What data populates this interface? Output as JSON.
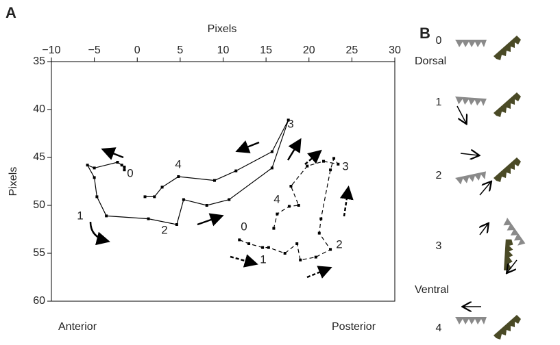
{
  "chart_data": {
    "type": "line",
    "panel_label": "A",
    "x_label": "Pixels",
    "y_label": "Pixels",
    "direction_labels": [
      "Dorsal",
      "Ventral",
      "Anterior",
      "Posterior"
    ],
    "xlim": [
      -10,
      30
    ],
    "ylim": [
      35,
      60
    ],
    "y_inverted": true,
    "xticks": [
      {
        "value": -10,
        "label": "−10"
      },
      {
        "value": -5,
        "label": "−5"
      },
      0,
      5,
      10,
      15,
      20,
      25,
      30
    ],
    "yticks": [
      35,
      40,
      45,
      50,
      55,
      60
    ],
    "series": [
      {
        "color": "#000000",
        "dash": false,
        "x": [
          -1.5,
          -1.5,
          -1.8,
          -2.3,
          -5.0,
          -5.8,
          -5.0,
          -4.7,
          -3.6,
          1.3,
          4.6,
          5.4,
          8.1,
          10.7,
          15.7,
          17.6,
          15.7,
          11.5,
          9.0,
          4.8,
          2.9,
          2.0,
          0.9
        ],
        "values": [
          46.3,
          46.0,
          45.8,
          45.5,
          46.1,
          45.8,
          47.1,
          49.1,
          51.1,
          51.4,
          52.0,
          49.4,
          50.0,
          49.4,
          46.1,
          41.1,
          44.4,
          46.4,
          47.4,
          47.0,
          48.1,
          49.1,
          49.1
        ],
        "labels": [
          "0",
          "1",
          "2",
          "3",
          "4"
        ]
      },
      {
        "color": "#000000",
        "dash": true,
        "x": [
          11.9,
          13.0,
          14.6,
          15.3,
          17.2,
          18.6,
          19.0,
          20.8,
          22.5,
          21.2,
          21.4,
          22.5,
          22.9,
          23.4,
          21.7,
          19.8,
          17.9,
          18.8,
          17.7,
          16.3,
          15.9
        ],
        "values": [
          53.6,
          54.0,
          54.4,
          54.4,
          55.0,
          54.0,
          55.7,
          55.4,
          54.6,
          52.9,
          51.4,
          46.3,
          45.1,
          45.7,
          45.4,
          45.9,
          48.0,
          50.0,
          50.1,
          50.9,
          52.4
        ],
        "labels": [
          "0",
          "1",
          "2",
          "3",
          "4"
        ]
      }
    ]
  },
  "panel_b": {
    "panel_label": "B",
    "steps": [
      "0",
      "1",
      "2",
      "3",
      "4"
    ]
  }
}
